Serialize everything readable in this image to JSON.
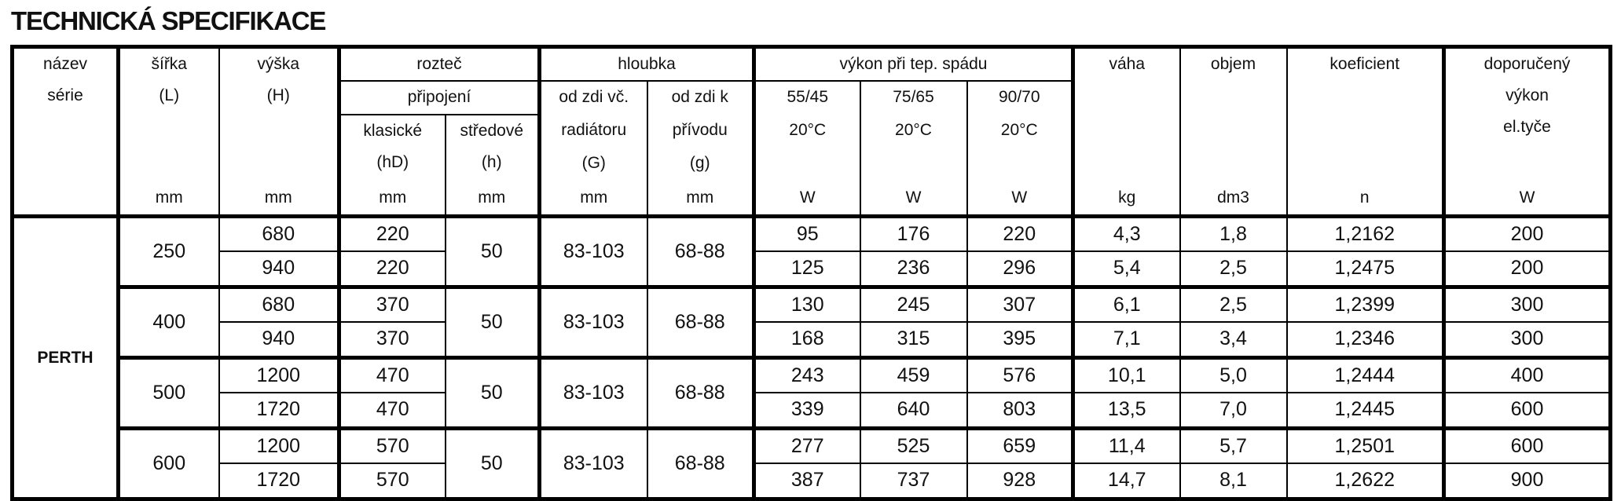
{
  "title": "TECHNICKÁ SPECIFIKACE",
  "header": {
    "nazev": [
      "název",
      "série"
    ],
    "sirka": [
      "šířka",
      "(L)"
    ],
    "vyska": [
      "výška",
      "(H)"
    ],
    "roztec": "rozteč",
    "pripojeni": "připojení",
    "klasicke": [
      "klasické",
      "(hD)"
    ],
    "stredove": [
      "středové",
      "(h)"
    ],
    "hloubka": "hloubka",
    "od_zdi_vc": [
      "od zdi  vč.",
      "radiátoru",
      "(G)"
    ],
    "od_zdi_k": [
      "od zdi  k",
      "přívodu",
      "(g)"
    ],
    "vykon": "výkon při tep.  spádu",
    "v1": [
      "55/45",
      "20°C"
    ],
    "v2": [
      "75/65",
      "20°C"
    ],
    "v3": [
      "90/70",
      "20°C"
    ],
    "vaha": "váha",
    "objem": "objem",
    "koeficient": "koeficient",
    "doporuceny": [
      "doporučený",
      "výkon",
      "el.tyče"
    ],
    "units": [
      "mm",
      "mm",
      "mm",
      "mm",
      "mm",
      "mm",
      "W",
      "W",
      "W",
      "kg",
      "dm3",
      "n",
      "W"
    ]
  },
  "series": "PERTH",
  "groups": [
    {
      "sirka": "250",
      "stredove": "50",
      "G": "83-103",
      "g": "68-88",
      "rows": [
        {
          "vyska": "680",
          "klasicke": "220",
          "w1": "95",
          "w2": "176",
          "w3": "220",
          "vaha": "4,3",
          "objem": "1,8",
          "koef": "1,2162",
          "dop": "200"
        },
        {
          "vyska": "940",
          "klasicke": "220",
          "w1": "125",
          "w2": "236",
          "w3": "296",
          "vaha": "5,4",
          "objem": "2,5",
          "koef": "1,2475",
          "dop": "200"
        }
      ]
    },
    {
      "sirka": "400",
      "stredove": "50",
      "G": "83-103",
      "g": "68-88",
      "rows": [
        {
          "vyska": "680",
          "klasicke": "370",
          "w1": "130",
          "w2": "245",
          "w3": "307",
          "vaha": "6,1",
          "objem": "2,5",
          "koef": "1,2399",
          "dop": "300"
        },
        {
          "vyska": "940",
          "klasicke": "370",
          "w1": "168",
          "w2": "315",
          "w3": "395",
          "vaha": "7,1",
          "objem": "3,4",
          "koef": "1,2346",
          "dop": "300"
        }
      ]
    },
    {
      "sirka": "500",
      "stredove": "50",
      "G": "83-103",
      "g": "68-88",
      "rows": [
        {
          "vyska": "1200",
          "klasicke": "470",
          "w1": "243",
          "w2": "459",
          "w3": "576",
          "vaha": "10,1",
          "objem": "5,0",
          "koef": "1,2444",
          "dop": "400"
        },
        {
          "vyska": "1720",
          "klasicke": "470",
          "w1": "339",
          "w2": "640",
          "w3": "803",
          "vaha": "13,5",
          "objem": "7,0",
          "koef": "1,2445",
          "dop": "600"
        }
      ]
    },
    {
      "sirka": "600",
      "stredove": "50",
      "G": "83-103",
      "g": "68-88",
      "rows": [
        {
          "vyska": "1200",
          "klasicke": "570",
          "w1": "277",
          "w2": "525",
          "w3": "659",
          "vaha": "11,4",
          "objem": "5,7",
          "koef": "1,2501",
          "dop": "600"
        },
        {
          "vyska": "1720",
          "klasicke": "570",
          "w1": "387",
          "w2": "737",
          "w3": "928",
          "vaha": "14,7",
          "objem": "8,1",
          "koef": "1,2622",
          "dop": "900"
        }
      ]
    }
  ]
}
